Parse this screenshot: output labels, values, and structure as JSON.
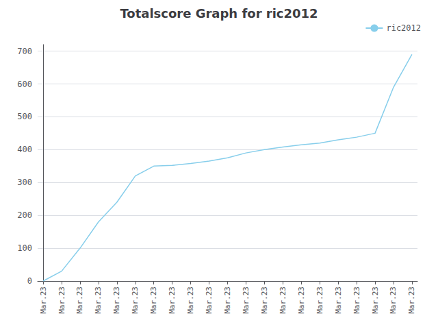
{
  "chart_data": {
    "type": "line",
    "title": "Totalscore Graph for ric2012",
    "x": [
      0,
      1,
      2,
      3,
      4,
      5,
      6,
      7,
      8,
      9,
      10,
      11,
      12,
      13,
      14,
      15,
      16,
      17,
      18,
      19,
      20
    ],
    "series": [
      {
        "name": "ric2012",
        "color": "#87CEEB",
        "values": [
          0,
          30,
          100,
          180,
          240,
          320,
          350,
          352,
          358,
          365,
          375,
          390,
          400,
          408,
          415,
          420,
          430,
          438,
          450,
          590,
          690
        ]
      }
    ],
    "xlim": [
      -0.3,
      20.3
    ],
    "xticks": [
      {
        "value": 0,
        "label": "Mar.23"
      },
      {
        "value": 1,
        "label": "Mar.23"
      },
      {
        "value": 2,
        "label": "Mar.23"
      },
      {
        "value": 3,
        "label": "Mar.23"
      },
      {
        "value": 4,
        "label": "Mar.23"
      },
      {
        "value": 5,
        "label": "Mar.23"
      },
      {
        "value": 6,
        "label": "Mar.23"
      },
      {
        "value": 7,
        "label": "Mar.23"
      },
      {
        "value": 8,
        "label": "Mar.23"
      },
      {
        "value": 9,
        "label": "Mar.23"
      },
      {
        "value": 10,
        "label": "Mar.23"
      },
      {
        "value": 11,
        "label": "Mar.23"
      },
      {
        "value": 12,
        "label": "Mar.23"
      },
      {
        "value": 13,
        "label": "Mar.23"
      },
      {
        "value": 14,
        "label": "Mar.23"
      },
      {
        "value": 15,
        "label": "Mar.23"
      },
      {
        "value": 16,
        "label": "Mar.23"
      },
      {
        "value": 17,
        "label": "Mar.23"
      },
      {
        "value": 18,
        "label": "Mar.23"
      },
      {
        "value": 19,
        "label": "Mar.23"
      },
      {
        "value": 20,
        "label": "Mar.23"
      }
    ],
    "ylim": [
      0,
      720
    ],
    "yticks": [
      0,
      100,
      200,
      300,
      400,
      500,
      600,
      700
    ],
    "grid": true,
    "legend": "upper right"
  }
}
